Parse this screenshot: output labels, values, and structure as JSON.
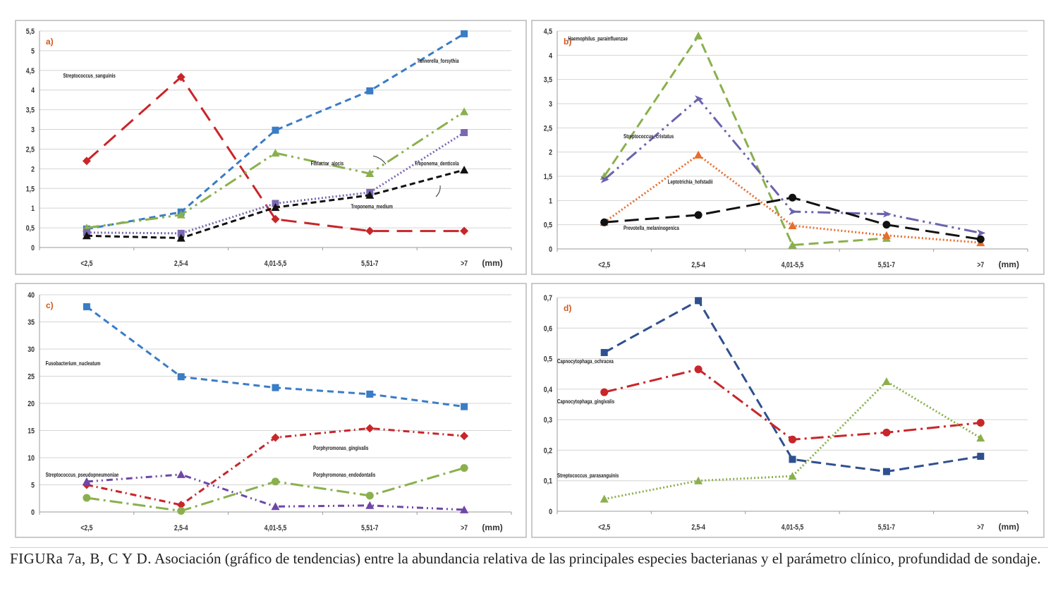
{
  "caption": {
    "lead": "FIGURa 7a, B, C Y D.",
    "text": "Asociación (gráfico de tendencias) entre la abundancia relativa de las principales especies bacterianas y el parámetro clínico, profundidad de sondaje."
  },
  "chart_data": [
    {
      "id": "a",
      "type": "line",
      "panel_label": "a)",
      "categories": [
        "<2,5",
        "2,5-4",
        "4,01-5,5",
        "5,51-7",
        ">7"
      ],
      "x_unit": "(mm)",
      "ylim": [
        0,
        5.5
      ],
      "yticks": [
        0,
        0.5,
        1,
        1.5,
        2,
        2.5,
        3,
        3.5,
        4,
        4.5,
        5,
        5.5
      ],
      "ytick_labels": [
        "0",
        "0,5",
        "1",
        "1,5",
        "2",
        "2,5",
        "3",
        "3,5",
        "4",
        "4,5",
        "5",
        "5,5"
      ],
      "grid": true,
      "series": [
        {
          "name": "Streptococcus_sanguinis",
          "color": "#c8262a",
          "dash": "22,11",
          "marker": "diamond",
          "values": [
            2.2,
            4.33,
            0.72,
            0.42,
            0.42
          ]
        },
        {
          "name": "Tannerella_forsythia",
          "color": "#3a7cc6",
          "dash": "9,6",
          "marker": "square",
          "values": [
            0.47,
            0.9,
            2.98,
            3.98,
            5.43
          ]
        },
        {
          "name": "Filifactor_alocis",
          "color": "#8ab04d",
          "dash": "18,6,3,6,3,6",
          "marker": "triangle",
          "values": [
            0.5,
            0.83,
            2.4,
            1.88,
            3.45
          ]
        },
        {
          "name": "Treponema_denticola",
          "color": "#7b68b0",
          "dash": "2,3",
          "marker": "square",
          "values": [
            0.38,
            0.36,
            1.12,
            1.4,
            2.92
          ]
        },
        {
          "name": "Treponema_medium",
          "color": "#111111",
          "dash": "8,5",
          "marker": "triangle",
          "values": [
            0.3,
            0.24,
            1.02,
            1.33,
            1.97
          ]
        }
      ],
      "annotations": [
        "Streptococcus_sanguinis",
        "Tannerella_forsythia",
        "Filifactor_alocis",
        "Treponema_denticola",
        "Treponema_medium"
      ]
    },
    {
      "id": "b",
      "type": "line",
      "panel_label": "b)",
      "categories": [
        "<2,5",
        "2,5-4",
        "4,01-5,5",
        "5,51-7",
        ">7"
      ],
      "x_unit": "(mm)",
      "ylim": [
        0,
        4.5
      ],
      "yticks": [
        0,
        0.5,
        1,
        1.5,
        2,
        2.5,
        3,
        3.5,
        4,
        4.5
      ],
      "ytick_labels": [
        "0",
        "0,5",
        "1",
        "1,5",
        "2",
        "2,5",
        "3",
        "3,5",
        "4",
        "4,5"
      ],
      "grid": true,
      "series": [
        {
          "name": "Haemophilus_parainfluenzae",
          "color": "#8ab04d",
          "dash": "14,7",
          "marker": "triangle",
          "values": [
            1.5,
            4.4,
            0.08,
            0.22,
            null
          ]
        },
        {
          "name": "Streptococcus_cristatus",
          "color": "#6a63ad",
          "dash": "18,6,3,6,3,6",
          "marker": "arrow",
          "values": [
            1.43,
            3.1,
            0.77,
            0.72,
            0.33
          ]
        },
        {
          "name": "Leptotrichia_hofstadii",
          "color": "#e66e2c",
          "dash": "2,3",
          "marker": "triangle",
          "values": [
            0.55,
            1.94,
            0.48,
            0.28,
            0.13
          ]
        },
        {
          "name": "Prevotella_melaninogenica",
          "color": "#111111",
          "dash": "20,9",
          "marker": "circle",
          "values": [
            0.55,
            0.7,
            1.06,
            0.5,
            0.2
          ]
        }
      ],
      "annotations": [
        "Haemophilus_parainfluenzae",
        "Streptococcus_cristatus",
        "Leptotrichia_hofstadii",
        "Prevotella_melaninogenica"
      ]
    },
    {
      "id": "c",
      "type": "line",
      "panel_label": "c)",
      "categories": [
        "<2,5",
        "2,5-4",
        "4,01-5,5",
        "5,51-7",
        ">7"
      ],
      "x_unit": "(mm)",
      "ylim": [
        0,
        40
      ],
      "yticks": [
        0,
        5,
        10,
        15,
        20,
        25,
        30,
        35,
        40
      ],
      "ytick_labels": [
        "0",
        "5",
        "10",
        "15",
        "20",
        "25",
        "30",
        "35",
        "40"
      ],
      "grid": true,
      "series": [
        {
          "name": "Fusobacterium_nucleatum",
          "color": "#3a7cc6",
          "dash": "9,6",
          "marker": "square",
          "values": [
            37.8,
            24.9,
            22.9,
            21.7,
            19.4
          ]
        },
        {
          "name": "Porphyromonas_gingivalis",
          "color": "#c8262a",
          "dash": "9,5,2,5",
          "marker": "diamond",
          "values": [
            5.0,
            1.3,
            13.7,
            15.4,
            14.0
          ]
        },
        {
          "name": "Streptococcus_pseudopneumoniae",
          "color": "#6f46a8",
          "dash": "9,5,2,5,2,5",
          "marker": "triangle",
          "values": [
            5.6,
            6.9,
            1.0,
            1.2,
            0.4
          ]
        },
        {
          "name": "Porphyromonas_endodontalis",
          "color": "#8ab04d",
          "dash": "18,6,3,6",
          "marker": "circle",
          "values": [
            2.6,
            0.2,
            5.6,
            3.0,
            8.1
          ]
        }
      ],
      "annotations": [
        "Fusobacterium_nucleatum",
        "Porphyromonas_gingivalis",
        "Streptococcus_pseudopneumoniae",
        "Porphyromonas_endodontalis"
      ]
    },
    {
      "id": "d",
      "type": "line",
      "panel_label": "d)",
      "categories": [
        "<2,5",
        "2,5-4",
        "4,01-5,5",
        "5,51-7",
        ">7"
      ],
      "x_unit": "(mm)",
      "ylim": [
        0,
        0.7
      ],
      "yticks": [
        0,
        0.1,
        0.2,
        0.3,
        0.4,
        0.5,
        0.6,
        0.7
      ],
      "ytick_labels": [
        "0",
        "0,1",
        "0,2",
        "0,3",
        "0,4",
        "0,5",
        "0,6",
        "0,7"
      ],
      "grid": true,
      "series": [
        {
          "name": "Capnocytophaga_ochracea",
          "color": "#2f4f8f",
          "dash": "14,7",
          "marker": "square",
          "values": [
            0.52,
            0.69,
            0.17,
            0.13,
            0.18
          ]
        },
        {
          "name": "Capnocytophaga_gingivalis",
          "color": "#c8262a",
          "dash": "18,6,3,6",
          "marker": "circle",
          "values": [
            0.39,
            0.465,
            0.235,
            0.258,
            0.29
          ]
        },
        {
          "name": "Streptococcus_parasanguinis",
          "color": "#8ab04d",
          "dash": "2,3",
          "marker": "triangle",
          "values": [
            0.04,
            0.1,
            0.115,
            0.425,
            0.24
          ]
        }
      ],
      "annotations": [
        "Capnocytophaga_ochracea",
        "Capnocytophaga_gingivalis",
        "Streptococcus_parasanguinis"
      ]
    }
  ]
}
